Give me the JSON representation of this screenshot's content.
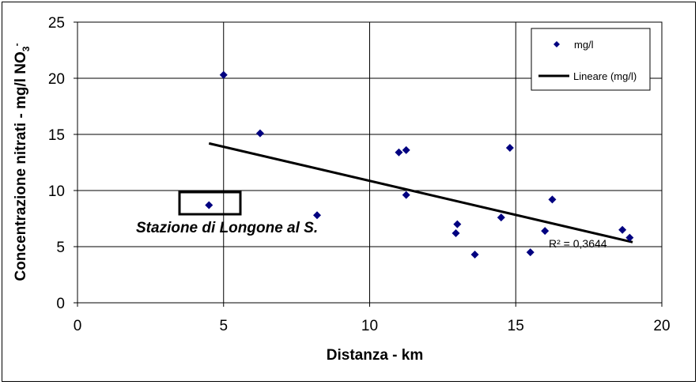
{
  "chart_data": {
    "type": "scatter",
    "xlabel": "Distanza - km",
    "ylabel_main": "Concentrazione nitrati - mg/l NO",
    "ylabel_sub": "3",
    "ylabel_sup": "-",
    "xlim": [
      0,
      20
    ],
    "ylim": [
      0,
      25
    ],
    "xticks": [
      "0",
      "5",
      "10",
      "15",
      "20"
    ],
    "yticks": [
      "0",
      "5",
      "10",
      "15",
      "20",
      "25"
    ],
    "grid": true,
    "legend_position": "top-right",
    "series": [
      {
        "name": "mg/l",
        "color": "#000080",
        "marker": "diamond",
        "points": [
          [
            4.5,
            8.7
          ],
          [
            5.0,
            20.3
          ],
          [
            6.25,
            15.1
          ],
          [
            8.2,
            7.8
          ],
          [
            11.0,
            13.4
          ],
          [
            11.25,
            13.6
          ],
          [
            11.25,
            9.6
          ],
          [
            12.95,
            6.2
          ],
          [
            13.0,
            7.0
          ],
          [
            13.6,
            4.3
          ],
          [
            14.5,
            7.6
          ],
          [
            14.8,
            13.8
          ],
          [
            15.5,
            4.5
          ],
          [
            16.0,
            6.4
          ],
          [
            16.25,
            9.2
          ],
          [
            18.65,
            6.5
          ],
          [
            18.9,
            5.8
          ]
        ]
      }
    ],
    "trendline": {
      "name": "Lineare (mg/l)",
      "color": "#000000",
      "x": [
        4.5,
        19.0
      ],
      "y": [
        14.2,
        5.4
      ]
    },
    "annotations": {
      "station_label": "Stazione di Longone al S.",
      "r_squared": "R² = 0,3644"
    }
  }
}
